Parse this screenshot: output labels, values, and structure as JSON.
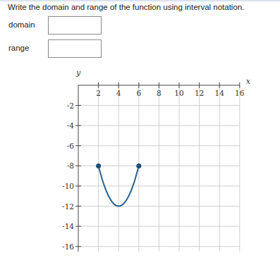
{
  "question": "Write the domain and range of the function using interval notation.",
  "fields": [
    "domain",
    "range"
  ],
  "chart_data": {
    "type": "line",
    "x_label": "x",
    "y_label": "y",
    "series": [
      {
        "x": [
          2,
          2.5,
          3,
          3.5,
          4,
          4.5,
          5,
          5.5,
          6
        ],
        "values": [
          -8,
          -9.75,
          -11,
          -11.75,
          -12,
          -11.75,
          -11,
          -9.75,
          -8
        ],
        "color": "#2e6390",
        "marker": "endpoints"
      }
    ],
    "xlim": [
      0,
      16
    ],
    "ylim": [
      -16.5,
      0
    ],
    "xticks": [
      2,
      4,
      6,
      8,
      10,
      12,
      14,
      16
    ],
    "yticks": [
      -2,
      -4,
      -6,
      -8,
      -10,
      -12,
      -14,
      -16
    ],
    "grid": true
  }
}
